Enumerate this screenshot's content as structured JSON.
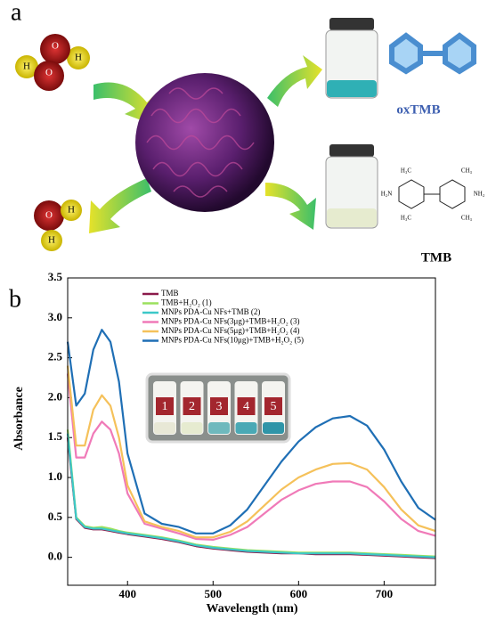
{
  "panel_a": {
    "label": "a",
    "h2o2_atoms": [
      "O",
      "O",
      "H",
      "H"
    ],
    "h2o_atoms": [
      "O",
      "H",
      "H"
    ],
    "product": "oxTMB",
    "substrate": "TMB",
    "tmb_groups": [
      "H₃C",
      "CH₃",
      "H₂N",
      "NH₂",
      "H₃C",
      "CH₃"
    ]
  },
  "chart_data": {
    "type": "line",
    "panel_label": "b",
    "x_label": "Wavelength (nm)",
    "y_label": "Absorbance",
    "inset_labels": [
      "1",
      "2",
      "3",
      "4",
      "5"
    ],
    "x": [
      330,
      340,
      350,
      360,
      370,
      380,
      390,
      400,
      420,
      440,
      460,
      480,
      500,
      520,
      540,
      560,
      580,
      600,
      620,
      640,
      660,
      680,
      700,
      720,
      740,
      760
    ],
    "series": [
      {
        "name": "TMB",
        "color": "#8b1a4a",
        "values": [
          1.5,
          0.48,
          0.37,
          0.35,
          0.35,
          0.33,
          0.31,
          0.29,
          0.26,
          0.23,
          0.19,
          0.14,
          0.11,
          0.09,
          0.07,
          0.06,
          0.05,
          0.05,
          0.04,
          0.04,
          0.04,
          0.03,
          0.02,
          0.01,
          0.0,
          -0.01
        ]
      },
      {
        "name": "TMB+H₂O₂ (1)",
        "color": "#9be15d",
        "values": [
          1.6,
          0.5,
          0.39,
          0.37,
          0.38,
          0.36,
          0.33,
          0.31,
          0.28,
          0.25,
          0.21,
          0.16,
          0.13,
          0.11,
          0.09,
          0.08,
          0.07,
          0.06,
          0.06,
          0.06,
          0.06,
          0.05,
          0.04,
          0.03,
          0.02,
          0.01
        ]
      },
      {
        "name": "MNPs PDA-Cu NFs+TMB (2)",
        "color": "#3cc8c8",
        "values": [
          1.55,
          0.49,
          0.38,
          0.36,
          0.36,
          0.34,
          0.32,
          0.3,
          0.27,
          0.24,
          0.2,
          0.15,
          0.12,
          0.1,
          0.08,
          0.07,
          0.06,
          0.05,
          0.05,
          0.05,
          0.05,
          0.04,
          0.03,
          0.02,
          0.01,
          0.0
        ]
      },
      {
        "name": "MNPs PDA-Cu NFs(3μg)+TMB+H₂O₂ (3)",
        "color": "#f07ab8",
        "values": [
          2.3,
          1.25,
          1.25,
          1.55,
          1.7,
          1.6,
          1.3,
          0.8,
          0.42,
          0.36,
          0.3,
          0.23,
          0.22,
          0.28,
          0.38,
          0.55,
          0.72,
          0.84,
          0.92,
          0.95,
          0.95,
          0.88,
          0.7,
          0.48,
          0.33,
          0.27
        ]
      },
      {
        "name": "MNPs PDA-Cu NFs(5μg)+TMB+H₂O₂ (4)",
        "color": "#f5c15a",
        "values": [
          2.4,
          1.4,
          1.4,
          1.85,
          2.03,
          1.9,
          1.5,
          0.9,
          0.45,
          0.38,
          0.33,
          0.25,
          0.25,
          0.32,
          0.45,
          0.65,
          0.85,
          1.0,
          1.1,
          1.17,
          1.18,
          1.1,
          0.88,
          0.6,
          0.4,
          0.33
        ]
      },
      {
        "name": "MNPs PDA-Cu NFs(10μg)+TMB+H₂O₂ (5)",
        "color": "#1f6fb5",
        "values": [
          2.7,
          1.9,
          2.05,
          2.6,
          2.85,
          2.7,
          2.2,
          1.3,
          0.55,
          0.42,
          0.38,
          0.3,
          0.3,
          0.4,
          0.6,
          0.9,
          1.2,
          1.45,
          1.63,
          1.74,
          1.77,
          1.65,
          1.35,
          0.95,
          0.62,
          0.47
        ]
      }
    ],
    "xlim": [
      330,
      760
    ],
    "ylim": [
      -0.35,
      3.5
    ],
    "xticks": [
      400,
      500,
      600,
      700
    ],
    "yticks": [
      {
        "value": 0,
        "label": "0.0"
      },
      0.5,
      {
        "value": 1,
        "label": "1.0"
      },
      1.5,
      {
        "value": 2,
        "label": "2.0"
      },
      2.5,
      {
        "value": 3,
        "label": "3.0"
      },
      3.5
    ],
    "inset_colors": [
      "#e8e8d6",
      "#e6ebd0",
      "#6fb9bd",
      "#4aa9b5",
      "#2f95a8"
    ]
  }
}
